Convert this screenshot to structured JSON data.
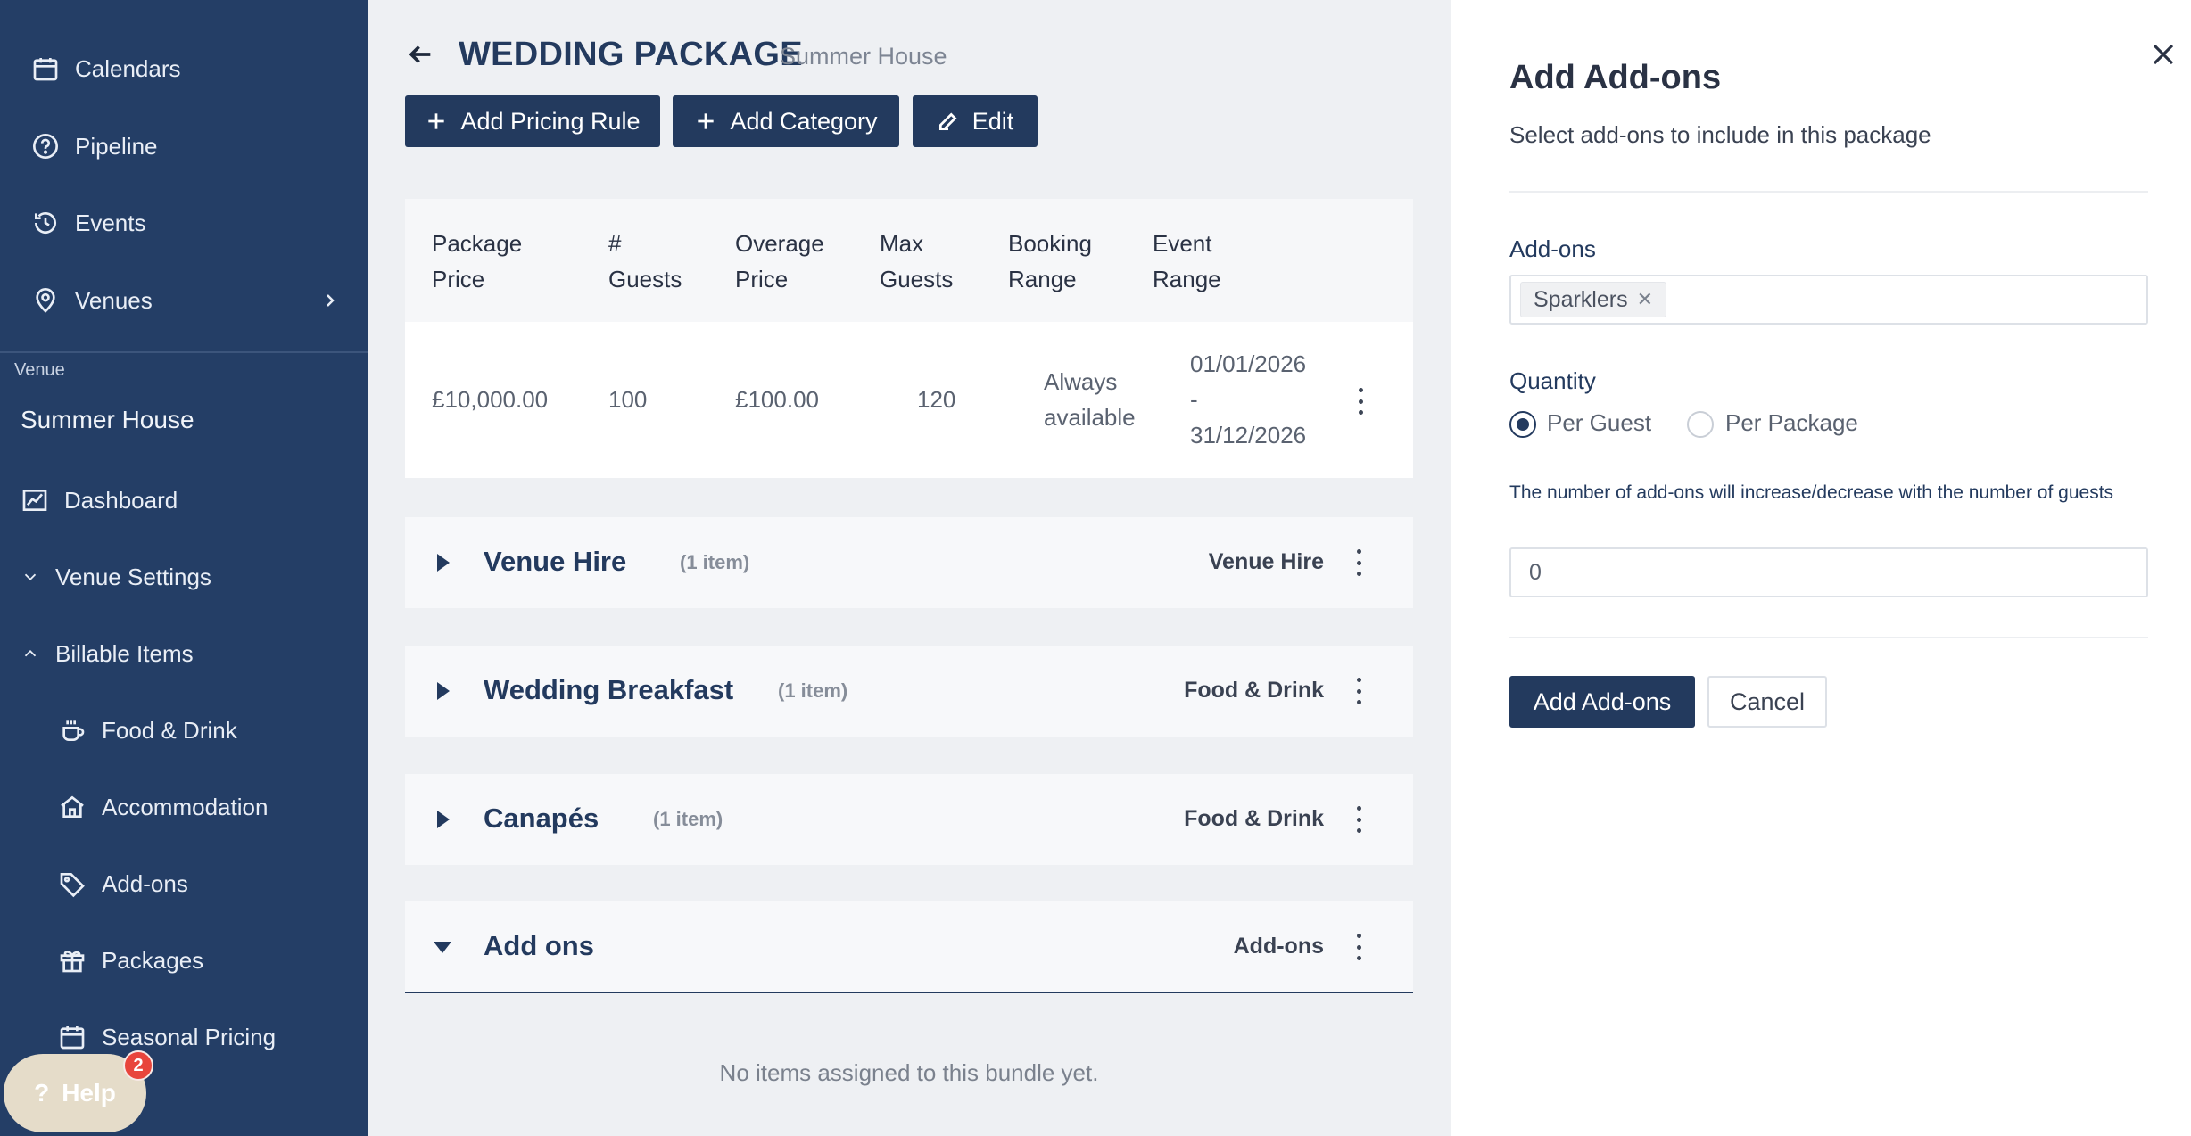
{
  "sidebar": {
    "top_items": [
      {
        "label": "Calendars",
        "icon": "calendar-icon"
      },
      {
        "label": "Pipeline",
        "icon": "question-circle-icon"
      },
      {
        "label": "Events",
        "icon": "history-icon"
      },
      {
        "label": "Venues",
        "icon": "location-pin-icon"
      }
    ],
    "venue_caption": "Venue",
    "venue_name": "Summer House",
    "dashboard": "Dashboard",
    "venue_settings": "Venue Settings",
    "billable_items": "Billable Items",
    "billable_sub": [
      {
        "label": "Food & Drink",
        "icon": "coffee-cup-icon"
      },
      {
        "label": "Accommodation",
        "icon": "home-icon"
      },
      {
        "label": "Add-ons",
        "icon": "tag-icon"
      },
      {
        "label": "Packages",
        "icon": "gift-icon"
      },
      {
        "label": "Seasonal Pricing",
        "icon": "calendar-icon"
      }
    ],
    "help_label": "Help",
    "help_badge": "2"
  },
  "main": {
    "title": "WEDDING PACKAGE",
    "subtitle": "Summer House",
    "buttons": {
      "add_pricing_rule": "Add Pricing Rule",
      "add_category": "Add Category",
      "edit": "Edit"
    },
    "pricing_table": {
      "headers": [
        [
          "Package",
          "Price"
        ],
        [
          "#",
          "Guests"
        ],
        [
          "Overage",
          "Price"
        ],
        [
          "Max",
          "Guests"
        ],
        [
          "Booking",
          "Range"
        ],
        [
          "Event",
          "Range"
        ]
      ],
      "row": {
        "package_price": "£10,000.00",
        "guests": "100",
        "overage_price": "£100.00",
        "max_guests": "120",
        "booking_range": [
          "Always",
          "available"
        ],
        "event_range": [
          "01/01/2026",
          "-",
          "31/12/2026"
        ]
      }
    },
    "categories": [
      {
        "name": "Venue Hire",
        "count": "(1 item)",
        "type": "Venue Hire",
        "expanded": false
      },
      {
        "name": "Wedding Breakfast",
        "count": "(1 item)",
        "type": "Food & Drink",
        "expanded": false
      },
      {
        "name": "Canapés",
        "count": "(1 item)",
        "type": "Food & Drink",
        "expanded": false
      },
      {
        "name": "Add ons",
        "count": "",
        "type": "Add-ons",
        "expanded": true
      }
    ],
    "empty_message": "No items assigned to this bundle yet."
  },
  "panel": {
    "title": "Add Add-ons",
    "subtitle": "Select add-ons to include in this package",
    "addons_label": "Add-ons",
    "selected_tag": "Sparklers",
    "quantity_label": "Quantity",
    "radio_options": [
      "Per Guest",
      "Per Package"
    ],
    "radio_selected": "Per Guest",
    "hint": "The number of add-ons will increase/decrease with the number of guests",
    "quantity_value": "0",
    "submit_label": "Add Add-ons",
    "cancel_label": "Cancel"
  },
  "colors": {
    "sidebar_bg": "#243e66",
    "primary": "#233a5e",
    "badge": "#e8453c"
  }
}
